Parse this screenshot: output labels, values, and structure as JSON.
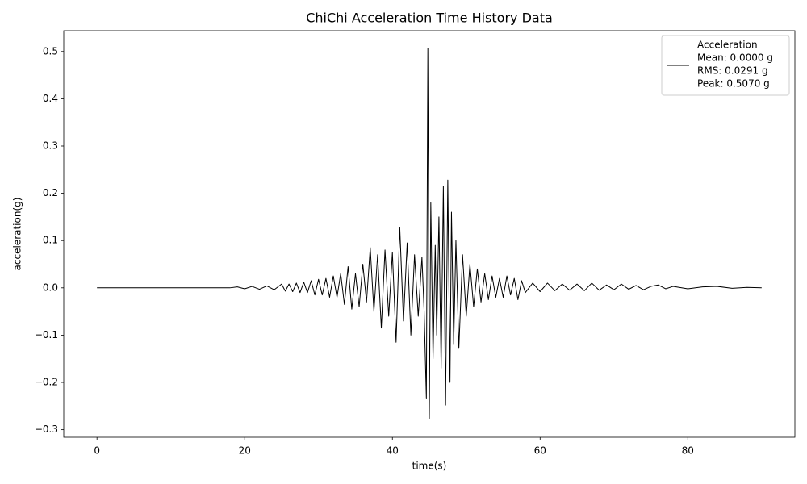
{
  "chart_data": {
    "type": "line",
    "title": "ChiChi Acceleration Time History Data",
    "x_label": "time(s)",
    "y_label": "acceleration(g)",
    "xlim": [
      -4.5,
      94.5
    ],
    "ylim": [
      -0.316,
      0.544
    ],
    "xticks": [
      0,
      20,
      40,
      60,
      80
    ],
    "yticks": [
      {
        "value": -0.3,
        "label": "−0.3"
      },
      {
        "value": -0.2,
        "label": "−0.2"
      },
      {
        "value": -0.1,
        "label": "−0.1"
      },
      {
        "value": 0,
        "label": "0.0"
      },
      0.1,
      0.2,
      0.3,
      0.4,
      0.5
    ],
    "grid": false,
    "legend_position": "upper right",
    "legend_notes": [
      "Mean: 0.0000 g",
      "RMS: 0.0291 g",
      "Peak: 0.5070 g"
    ],
    "x": [
      0,
      10,
      18,
      19,
      20,
      21,
      22,
      23,
      24,
      25,
      25.5,
      26,
      26.5,
      27,
      27.5,
      28,
      28.5,
      29,
      29.5,
      30,
      30.5,
      31,
      31.5,
      32,
      32.5,
      33,
      33.5,
      34,
      34.5,
      35,
      35.5,
      36,
      36.5,
      37,
      37.5,
      38,
      38.5,
      39,
      39.5,
      40,
      40.5,
      41,
      41.5,
      42,
      42.5,
      43,
      43.5,
      44,
      44.3,
      44.6,
      44.8,
      45,
      45.2,
      45.5,
      45.8,
      46,
      46.3,
      46.6,
      46.9,
      47.2,
      47.5,
      47.8,
      48,
      48.3,
      48.6,
      49,
      49.5,
      50,
      50.5,
      51,
      51.5,
      52,
      52.5,
      53,
      53.5,
      54,
      54.5,
      55,
      55.5,
      56,
      56.5,
      57,
      57.5,
      58,
      59,
      60,
      61,
      62,
      63,
      64,
      65,
      66,
      67,
      68,
      69,
      70,
      71,
      72,
      73,
      74,
      75,
      76,
      77,
      78,
      80,
      82,
      84,
      86,
      88,
      90
    ],
    "series": [
      {
        "name": "Acceleration",
        "color": "#000000",
        "values": [
          0,
          0,
          0,
          0.002,
          -0.002,
          0.003,
          -0.003,
          0.004,
          -0.004,
          0.008,
          -0.007,
          0.008,
          -0.008,
          0.01,
          -0.01,
          0.012,
          -0.01,
          0.015,
          -0.015,
          0.018,
          -0.015,
          0.02,
          -0.02,
          0.025,
          -0.02,
          0.03,
          -0.035,
          0.045,
          -0.045,
          0.03,
          -0.04,
          0.05,
          -0.03,
          0.085,
          -0.05,
          0.07,
          -0.085,
          0.08,
          -0.06,
          0.075,
          -0.115,
          0.128,
          -0.07,
          0.095,
          -0.1,
          0.07,
          -0.06,
          0.065,
          -0.05,
          -0.235,
          0.507,
          -0.276,
          0.18,
          -0.15,
          0.09,
          -0.1,
          0.15,
          -0.17,
          0.215,
          -0.248,
          0.228,
          -0.2,
          0.16,
          -0.12,
          0.1,
          -0.128,
          0.07,
          -0.06,
          0.05,
          -0.04,
          0.04,
          -0.03,
          0.03,
          -0.025,
          0.025,
          -0.02,
          0.02,
          -0.02,
          0.025,
          -0.015,
          0.02,
          -0.025,
          0.015,
          -0.01,
          0.01,
          -0.008,
          0.01,
          -0.006,
          0.008,
          -0.005,
          0.008,
          -0.006,
          0.01,
          -0.005,
          0.006,
          -0.004,
          0.008,
          -0.003,
          0.005,
          -0.004,
          0.003,
          0.006,
          -0.002,
          0.003,
          -0.002,
          0.002,
          0.003,
          -0.001,
          0.001,
          0
        ]
      }
    ]
  }
}
